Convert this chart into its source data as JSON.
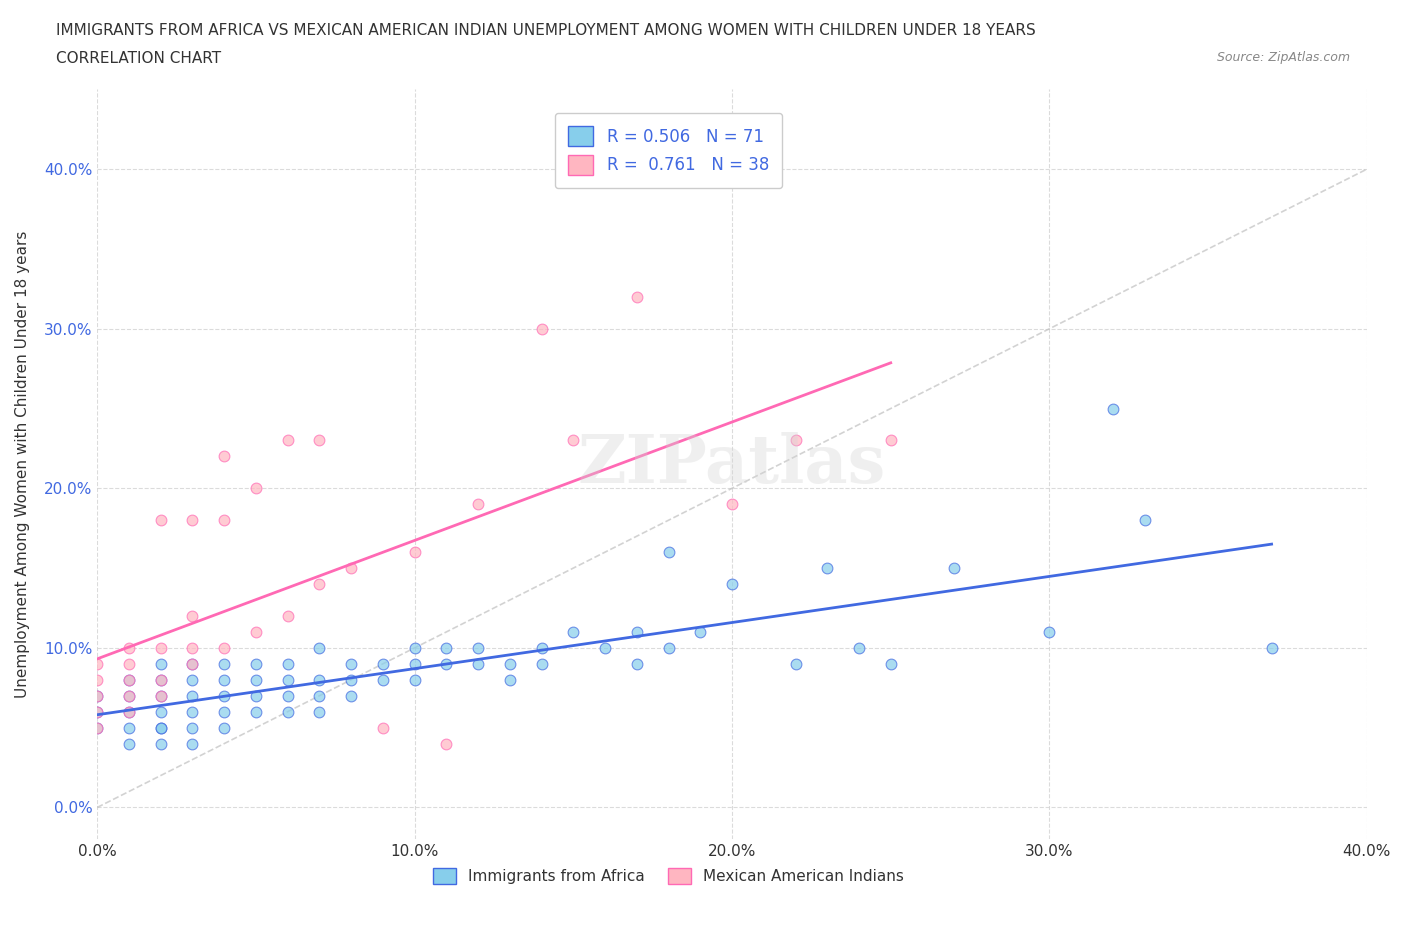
{
  "title_line1": "IMMIGRANTS FROM AFRICA VS MEXICAN AMERICAN INDIAN UNEMPLOYMENT AMONG WOMEN WITH CHILDREN UNDER 18 YEARS",
  "title_line2": "CORRELATION CHART",
  "source": "Source: ZipAtlas.com",
  "xlabel": "",
  "ylabel": "Unemployment Among Women with Children Under 18 years",
  "xlim": [
    0.0,
    0.4
  ],
  "ylim": [
    -0.02,
    0.45
  ],
  "yticks": [
    0.0,
    0.1,
    0.2,
    0.3,
    0.4
  ],
  "yticklabels": [
    "0.0%",
    "10.0%",
    "20.0%",
    "30.0%",
    "40.0%"
  ],
  "xticks": [
    0.0,
    0.1,
    0.2,
    0.3,
    0.4
  ],
  "xticklabels": [
    "0.0%",
    "10.0%",
    "20.0%",
    "30.0%",
    "40.0%"
  ],
  "color_blue": "#87CEEB",
  "color_pink": "#FFB6C1",
  "line_color_blue": "#4169E1",
  "line_color_pink": "#FF69B4",
  "diag_color": "#C0C0C0",
  "watermark": "ZIPatlas",
  "legend_R_blue": "0.506",
  "legend_N_blue": "71",
  "legend_R_pink": "0.761",
  "legend_N_pink": "38",
  "blue_scatter_x": [
    0.0,
    0.0,
    0.0,
    0.01,
    0.01,
    0.01,
    0.01,
    0.01,
    0.02,
    0.02,
    0.02,
    0.02,
    0.02,
    0.02,
    0.02,
    0.03,
    0.03,
    0.03,
    0.03,
    0.03,
    0.03,
    0.04,
    0.04,
    0.04,
    0.04,
    0.04,
    0.05,
    0.05,
    0.05,
    0.05,
    0.06,
    0.06,
    0.06,
    0.06,
    0.07,
    0.07,
    0.07,
    0.07,
    0.08,
    0.08,
    0.08,
    0.09,
    0.09,
    0.1,
    0.1,
    0.1,
    0.11,
    0.11,
    0.12,
    0.12,
    0.13,
    0.13,
    0.14,
    0.14,
    0.15,
    0.16,
    0.17,
    0.17,
    0.18,
    0.18,
    0.19,
    0.2,
    0.22,
    0.23,
    0.24,
    0.25,
    0.27,
    0.3,
    0.32,
    0.33,
    0.37
  ],
  "blue_scatter_y": [
    0.05,
    0.06,
    0.07,
    0.04,
    0.05,
    0.06,
    0.07,
    0.08,
    0.04,
    0.05,
    0.05,
    0.06,
    0.07,
    0.08,
    0.09,
    0.04,
    0.05,
    0.06,
    0.07,
    0.08,
    0.09,
    0.05,
    0.06,
    0.07,
    0.08,
    0.09,
    0.06,
    0.07,
    0.08,
    0.09,
    0.06,
    0.07,
    0.08,
    0.09,
    0.06,
    0.07,
    0.08,
    0.1,
    0.07,
    0.08,
    0.09,
    0.08,
    0.09,
    0.08,
    0.09,
    0.1,
    0.09,
    0.1,
    0.09,
    0.1,
    0.08,
    0.09,
    0.09,
    0.1,
    0.11,
    0.1,
    0.09,
    0.11,
    0.1,
    0.16,
    0.11,
    0.14,
    0.09,
    0.15,
    0.1,
    0.09,
    0.15,
    0.11,
    0.25,
    0.18,
    0.1
  ],
  "pink_scatter_x": [
    0.0,
    0.0,
    0.0,
    0.0,
    0.0,
    0.01,
    0.01,
    0.01,
    0.01,
    0.01,
    0.02,
    0.02,
    0.02,
    0.02,
    0.03,
    0.03,
    0.03,
    0.03,
    0.04,
    0.04,
    0.04,
    0.05,
    0.05,
    0.06,
    0.06,
    0.07,
    0.07,
    0.08,
    0.09,
    0.1,
    0.11,
    0.12,
    0.14,
    0.15,
    0.17,
    0.2,
    0.22,
    0.25
  ],
  "pink_scatter_y": [
    0.05,
    0.06,
    0.07,
    0.08,
    0.09,
    0.06,
    0.07,
    0.08,
    0.09,
    0.1,
    0.07,
    0.08,
    0.1,
    0.18,
    0.09,
    0.1,
    0.12,
    0.18,
    0.1,
    0.18,
    0.22,
    0.11,
    0.2,
    0.12,
    0.23,
    0.14,
    0.23,
    0.15,
    0.05,
    0.16,
    0.04,
    0.19,
    0.3,
    0.23,
    0.32,
    0.19,
    0.23,
    0.23
  ],
  "background_color": "#ffffff",
  "grid_color": "#d3d3d3"
}
